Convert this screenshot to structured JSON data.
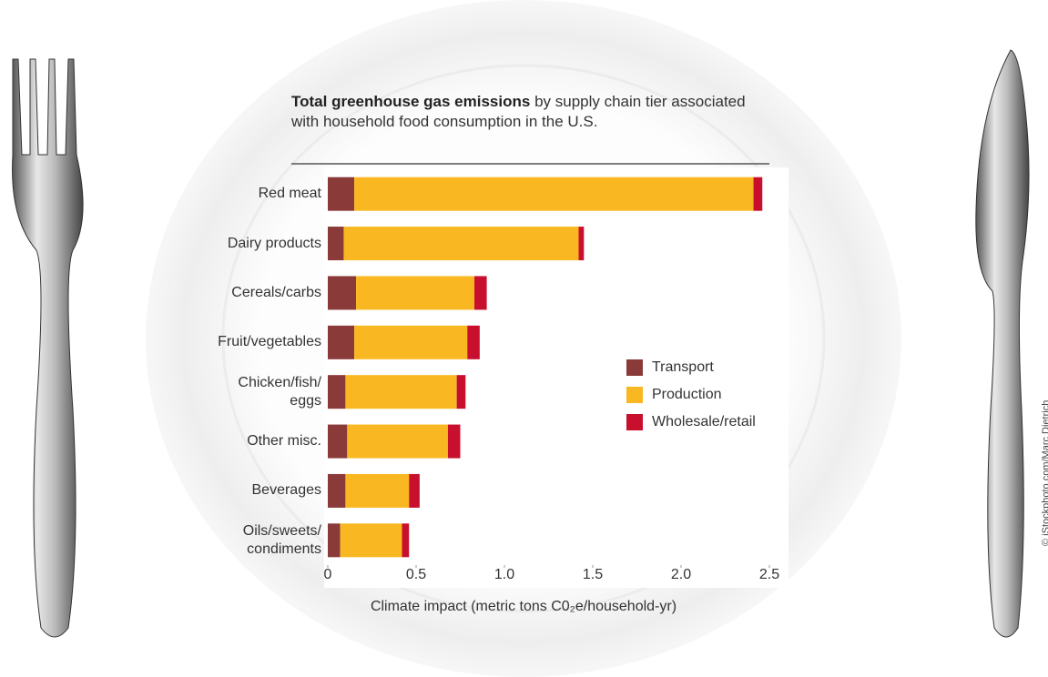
{
  "chart_data": {
    "type": "stacked-bar-horizontal",
    "title": "Total greenhouse gas emissions",
    "subtitle": "by supply chain tier associated with household food consumption in the U.S.",
    "categories": [
      "Red meat",
      "Dairy products",
      "Cereals/carbs",
      "Fruit/vegetables",
      "Chicken/fish/\neggs",
      "Other misc.",
      "Beverages",
      "Oils/sweets/\ncondiments"
    ],
    "series": [
      {
        "name": "Transport",
        "color": "#8b3a3a",
        "values": [
          0.15,
          0.09,
          0.16,
          0.15,
          0.1,
          0.11,
          0.1,
          0.07
        ]
      },
      {
        "name": "Production",
        "color": "#f9b821",
        "values": [
          2.26,
          1.33,
          0.67,
          0.64,
          0.63,
          0.57,
          0.36,
          0.35
        ]
      },
      {
        "name": "Wholesale/retail",
        "color": "#c8102e",
        "values": [
          0.05,
          0.03,
          0.07,
          0.07,
          0.05,
          0.07,
          0.06,
          0.04
        ]
      }
    ],
    "xlim": [
      0,
      2.5
    ],
    "xticks": [
      0,
      0.5,
      {
        "value": 1,
        "label": "1.0"
      },
      1.5,
      {
        "value": 2,
        "label": "2.0"
      },
      2.5
    ],
    "xlabel": "Climate impact (metric tons C0₂e/household-yr)",
    "credit": "© iStockphoto.com/Marc Dietrich"
  }
}
